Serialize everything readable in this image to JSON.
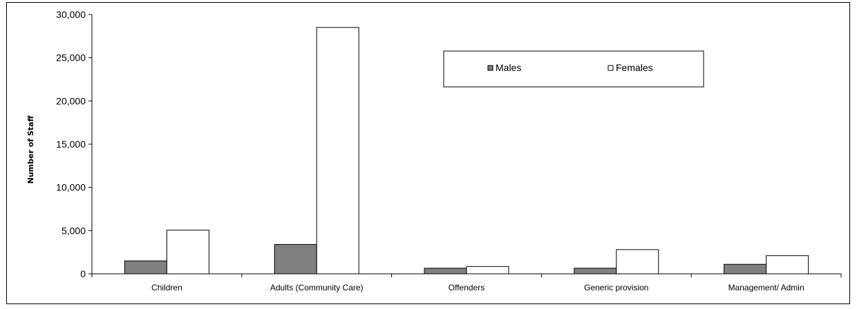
{
  "chart_data": {
    "type": "bar",
    "title": "",
    "xlabel": "",
    "ylabel": "Number of Staff",
    "ylim": [
      0,
      30000
    ],
    "yticks": [
      0,
      5000,
      10000,
      15000,
      20000,
      25000,
      30000
    ],
    "ytick_labels": [
      "0",
      "5,000",
      "10,000",
      "15,000",
      "20,000",
      "25,000",
      "30,000"
    ],
    "categories": [
      "Children",
      "Adults (Community Care)",
      "Offenders",
      "Generic provision",
      "Management/ Admin"
    ],
    "series": [
      {
        "name": "Males",
        "color": "#808080",
        "values": [
          1500,
          3400,
          650,
          650,
          1100
        ]
      },
      {
        "name": "Females",
        "color": "#ffffff",
        "values": [
          5050,
          28500,
          850,
          2800,
          2100
        ]
      }
    ],
    "grid": false,
    "legend_position": "top-right"
  }
}
